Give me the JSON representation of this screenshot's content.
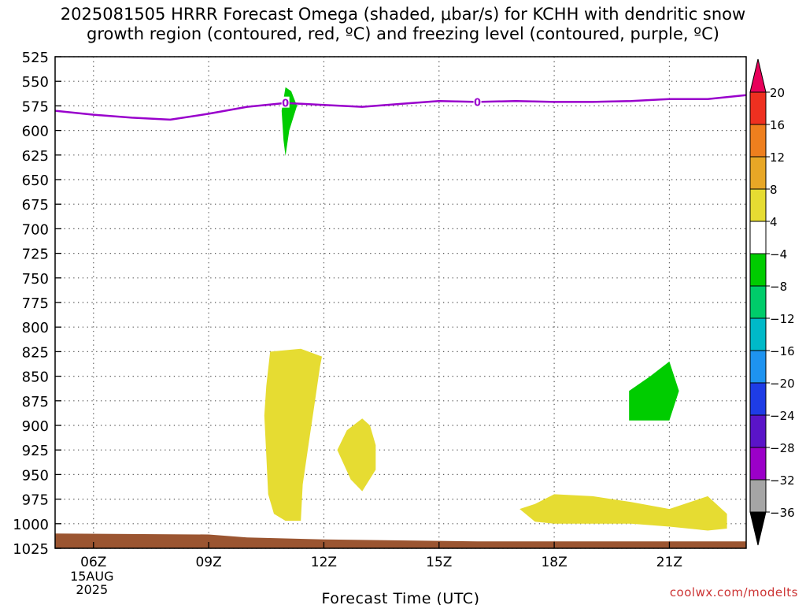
{
  "title": {
    "line1": "2025081505 HRRR Forecast Omega (shaded, μbar/s) for KCHH with dendritic snow",
    "line2": "growth region (contoured, red, ºC) and freezing level (contoured, purple, ºC)"
  },
  "credit": "coolwx.com/modelts",
  "chart_data": {
    "type": "area",
    "xlabel": "Forecast Time (UTC)",
    "ylabel": "",
    "x_unit": "hours UTC",
    "xlim": [
      5,
      23
    ],
    "ylim": [
      525,
      1025
    ],
    "y_inverted": true,
    "grid": true,
    "x_ticks": [
      {
        "x": 6,
        "label": "06Z"
      },
      {
        "x": 9,
        "label": "09Z"
      },
      {
        "x": 12,
        "label": "12Z"
      },
      {
        "x": 15,
        "label": "15Z"
      },
      {
        "x": 18,
        "label": "18Z"
      },
      {
        "x": 21,
        "label": "21Z"
      }
    ],
    "x_date_labels": [
      "15AUG",
      "2025"
    ],
    "y_ticks": [
      525,
      550,
      575,
      600,
      625,
      650,
      675,
      700,
      725,
      750,
      775,
      800,
      825,
      850,
      875,
      900,
      925,
      950,
      975,
      1000,
      1025
    ],
    "freezing_level": {
      "color": "#9900cc",
      "label": "0",
      "label_points": [
        [
          11.0,
          572
        ],
        [
          16.0,
          571
        ]
      ],
      "points": [
        [
          5,
          580
        ],
        [
          6,
          584
        ],
        [
          7,
          587
        ],
        [
          8,
          589
        ],
        [
          9,
          583
        ],
        [
          10,
          576
        ],
        [
          11,
          572
        ],
        [
          12,
          574
        ],
        [
          13,
          576
        ],
        [
          14,
          573
        ],
        [
          15,
          570
        ],
        [
          16,
          571
        ],
        [
          17,
          570
        ],
        [
          18,
          571
        ],
        [
          19,
          571
        ],
        [
          20,
          570
        ],
        [
          21,
          568
        ],
        [
          22,
          568
        ],
        [
          23,
          564
        ]
      ]
    },
    "omega_regions": [
      {
        "value_class": "-8 to -4",
        "color": "#00cc00",
        "points": [
          [
            11.0,
            556
          ],
          [
            10.9,
            580
          ],
          [
            10.95,
            610
          ],
          [
            11.0,
            626
          ],
          [
            11.1,
            600
          ],
          [
            11.3,
            575
          ],
          [
            11.15,
            560
          ]
        ]
      },
      {
        "value_class": "4 to 8",
        "color": "#e6dc32",
        "points": [
          [
            10.6,
            825
          ],
          [
            10.5,
            860
          ],
          [
            10.45,
            890
          ],
          [
            10.5,
            930
          ],
          [
            10.55,
            970
          ],
          [
            10.7,
            990
          ],
          [
            11.0,
            997
          ],
          [
            11.4,
            997
          ],
          [
            11.45,
            960
          ],
          [
            11.6,
            920
          ],
          [
            11.75,
            880
          ],
          [
            11.9,
            840
          ],
          [
            11.95,
            830
          ],
          [
            11.4,
            822
          ]
        ]
      },
      {
        "value_class": "4 to 8",
        "color": "#e6dc32",
        "points": [
          [
            13.0,
            893
          ],
          [
            12.6,
            905
          ],
          [
            12.35,
            925
          ],
          [
            12.7,
            955
          ],
          [
            13.0,
            967
          ],
          [
            13.35,
            945
          ],
          [
            13.35,
            920
          ],
          [
            13.2,
            900
          ]
        ]
      },
      {
        "value_class": "4 to 8",
        "color": "#e6dc32",
        "points": [
          [
            17.1,
            985
          ],
          [
            17.5,
            980
          ],
          [
            18.0,
            970
          ],
          [
            19.0,
            972
          ],
          [
            20.0,
            978
          ],
          [
            21.0,
            985
          ],
          [
            22.0,
            972
          ],
          [
            22.5,
            990
          ],
          [
            22.5,
            1005
          ],
          [
            22.0,
            1007
          ],
          [
            21.0,
            1003
          ],
          [
            20.0,
            1000
          ],
          [
            19.0,
            1000
          ],
          [
            18.0,
            1000
          ],
          [
            17.5,
            998
          ]
        ]
      },
      {
        "value_class": "-8 to -4",
        "color": "#00cc00",
        "points": [
          [
            19.95,
            865
          ],
          [
            20.5,
            850
          ],
          [
            21.0,
            835
          ],
          [
            21.25,
            865
          ],
          [
            21.0,
            895
          ],
          [
            19.95,
            895
          ]
        ]
      }
    ],
    "terrain": {
      "color": "#9b5531",
      "points": [
        [
          5,
          1010
        ],
        [
          9,
          1011
        ],
        [
          10,
          1014
        ],
        [
          12,
          1016
        ],
        [
          14,
          1017
        ],
        [
          16,
          1018
        ],
        [
          23,
          1018
        ]
      ]
    },
    "colorbar": {
      "labels": [
        "20",
        "16",
        "12",
        "8",
        "4",
        "−4",
        "−8",
        "−12",
        "−16",
        "−20",
        "−24",
        "−28",
        "−32",
        "−36"
      ],
      "colors": [
        "#e8005a",
        "#ee3020",
        "#ee7f1e",
        "#e8a726",
        "#e6dc32",
        "#ffffff",
        "#00cc00",
        "#00cc6a",
        "#00b9c8",
        "#1e93f0",
        "#1e3ce6",
        "#5a14c8",
        "#9b00c8",
        "#a5a5a5",
        "#000000"
      ]
    }
  }
}
